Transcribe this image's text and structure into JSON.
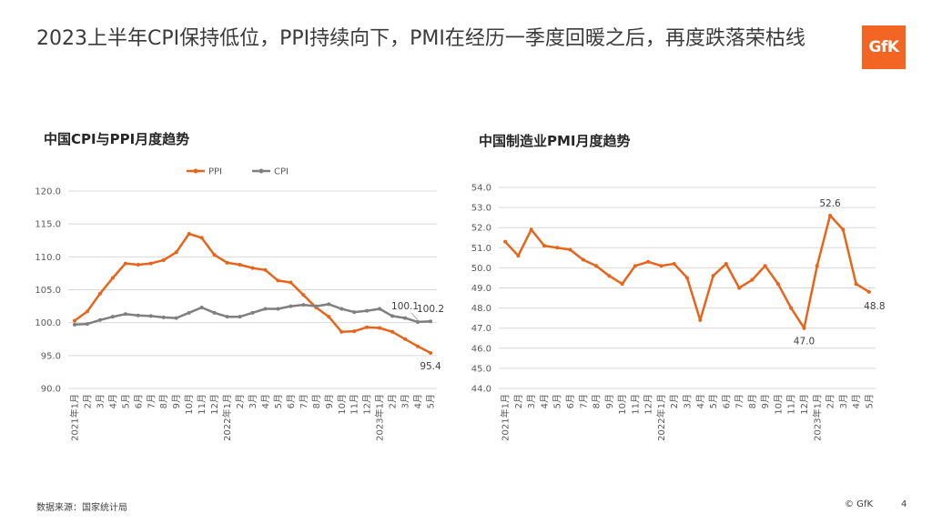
{
  "page": {
    "title": "2023上半年CPI保持低位，PPI持续向下，PMI在经历一季度回暖之后，再度跌落荣枯线",
    "logo_text": "GfK",
    "source": "数据来源：国家统计局",
    "copyright": "© GfK",
    "page_number": "4",
    "accent_color": "#e8641b",
    "gray_color": "#7f7f7f"
  },
  "chart_data": [
    {
      "type": "line",
      "title": "中国CPI与PPI月度趋势",
      "categories": [
        "2021年1月",
        "2月",
        "3月",
        "4月",
        "5月",
        "6月",
        "7月",
        "8月",
        "9月",
        "10月",
        "11月",
        "12月",
        "2022年1月",
        "2月",
        "3月",
        "4月",
        "5月",
        "6月",
        "7月",
        "8月",
        "9月",
        "10月",
        "11月",
        "12月",
        "2023年1月",
        "2月",
        "3月",
        "4月",
        "5月"
      ],
      "series": [
        {
          "name": "PPI",
          "color": "#e8641b",
          "values": [
            100.3,
            101.7,
            104.4,
            106.8,
            109.0,
            108.8,
            109.0,
            109.5,
            110.7,
            113.5,
            112.9,
            110.3,
            109.1,
            108.8,
            108.3,
            108.0,
            106.4,
            106.1,
            104.2,
            102.3,
            100.9,
            98.6,
            98.7,
            99.3,
            99.2,
            98.6,
            97.5,
            96.4,
            95.4
          ]
        },
        {
          "name": "CPI",
          "color": "#7f7f7f",
          "values": [
            99.7,
            99.8,
            100.4,
            100.9,
            101.3,
            101.1,
            101.0,
            100.8,
            100.7,
            101.5,
            102.3,
            101.5,
            100.9,
            100.9,
            101.5,
            102.1,
            102.1,
            102.5,
            102.7,
            102.5,
            102.8,
            102.1,
            101.6,
            101.8,
            102.1,
            101.0,
            100.7,
            100.1,
            100.2
          ]
        }
      ],
      "ylim": [
        90,
        120
      ],
      "yticks": [
        "90.0",
        "95.0",
        "100.0",
        "105.0",
        "110.0",
        "115.0",
        "120.0"
      ],
      "legend_position": "top",
      "annotations": [
        {
          "series": "PPI",
          "index": 28,
          "text": "95.4"
        },
        {
          "series": "CPI",
          "index": 27,
          "text": "100.1"
        },
        {
          "series": "CPI",
          "index": 28,
          "text": "100.2"
        }
      ]
    },
    {
      "type": "line",
      "title": "中国制造业PMI月度趋势",
      "categories": [
        "2021年1月",
        "2月",
        "3月",
        "4月",
        "5月",
        "6月",
        "7月",
        "8月",
        "9月",
        "10月",
        "11月",
        "12月",
        "2022年1月",
        "2月",
        "3月",
        "4月",
        "5月",
        "6月",
        "7月",
        "8月",
        "9月",
        "10月",
        "11月",
        "12月",
        "2023年1月",
        "2月",
        "3月",
        "4月",
        "5月"
      ],
      "series": [
        {
          "name": "PMI",
          "color": "#e8641b",
          "values": [
            51.3,
            50.6,
            51.9,
            51.1,
            51.0,
            50.9,
            50.4,
            50.1,
            49.6,
            49.2,
            50.1,
            50.3,
            50.1,
            50.2,
            49.5,
            47.4,
            49.6,
            50.2,
            49.0,
            49.4,
            50.1,
            49.2,
            48.0,
            47.0,
            50.1,
            52.6,
            51.9,
            49.2,
            48.8
          ]
        }
      ],
      "ylim": [
        44,
        54
      ],
      "yticks": [
        "44.0",
        "45.0",
        "46.0",
        "47.0",
        "48.0",
        "49.0",
        "50.0",
        "51.0",
        "52.0",
        "53.0",
        "54.0"
      ],
      "legend_position": "none",
      "annotations": [
        {
          "series": "PMI",
          "index": 23,
          "text": "47.0"
        },
        {
          "series": "PMI",
          "index": 25,
          "text": "52.6"
        },
        {
          "series": "PMI",
          "index": 28,
          "text": "48.8"
        }
      ]
    }
  ]
}
